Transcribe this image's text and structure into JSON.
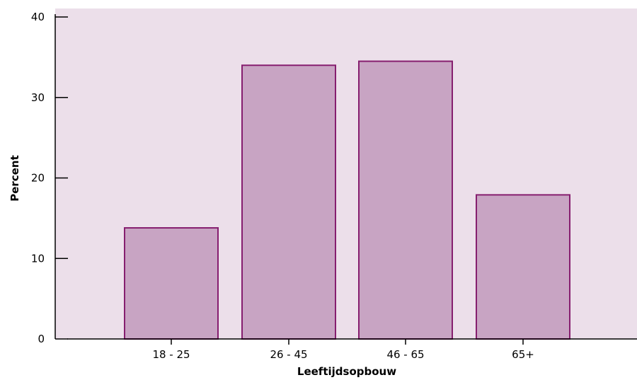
{
  "chart_data": {
    "type": "bar",
    "title": "",
    "xlabel": "Leeftijdsopbouw",
    "ylabel": "Percent",
    "categories": [
      "18 - 25",
      "26 - 45",
      "46 - 65",
      "65+"
    ],
    "values": [
      13.8,
      34.0,
      34.5,
      17.9
    ],
    "ylim": [
      0,
      40
    ],
    "yticks": [
      0,
      10,
      20,
      30,
      40
    ],
    "grid": false,
    "legend": "none"
  },
  "colors": {
    "plot_background": "#ecdfea",
    "bar_fill": "#c8a4c3",
    "bar_stroke": "#861e6f",
    "axis": "#000000"
  }
}
